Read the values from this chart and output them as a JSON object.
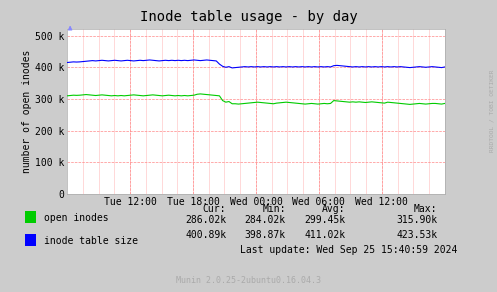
{
  "title": "Inode table usage - by day",
  "ylabel": "number of open inodes",
  "background_color": "#CCCCCC",
  "plot_bg_color": "#FFFFFF",
  "grid_color_minor": "#FFAAAA",
  "grid_color_major": "#FF9999",
  "x_ticks": [
    "Tue 12:00",
    "Tue 18:00",
    "Wed 00:00",
    "Wed 06:00",
    "Wed 12:00"
  ],
  "y_ticks": [
    "0",
    "100 k",
    "200 k",
    "300 k",
    "400 k",
    "500 k"
  ],
  "y_values": [
    0,
    100000,
    200000,
    300000,
    400000,
    500000
  ],
  "ylim": [
    0,
    520000
  ],
  "open_inodes_color": "#00CC00",
  "inode_table_color": "#0000FF",
  "legend": [
    {
      "label": "open inodes",
      "color": "#00CC00"
    },
    {
      "label": "inode table size",
      "color": "#0000FF"
    }
  ],
  "stats": {
    "cur_label": "Cur:",
    "min_label": "Min:",
    "avg_label": "Avg:",
    "max_label": "Max:",
    "open_inodes": {
      "cur": "286.02k",
      "min": "284.02k",
      "avg": "299.45k",
      "max": "315.90k"
    },
    "inode_table": {
      "cur": "400.89k",
      "min": "398.87k",
      "avg": "411.02k",
      "max": "423.53k"
    },
    "last_update": "Last update: Wed Sep 25 15:40:59 2024"
  },
  "watermark": "RRDTOOL / TOBI OETIKER",
  "munin_version": "Munin 2.0.25-2ubuntu0.16.04.3",
  "open_inodes_data": [
    310000,
    311000,
    312000,
    311500,
    312000,
    313000,
    314000,
    313000,
    312000,
    311000,
    312000,
    313000,
    312000,
    311000,
    310000,
    311000,
    310000,
    311000,
    310000,
    311000,
    312000,
    313000,
    312000,
    311000,
    310000,
    311000,
    312000,
    313000,
    312000,
    311000,
    310000,
    311000,
    312000,
    311000,
    310000,
    311000,
    310000,
    311000,
    310000,
    311000,
    312000,
    315000,
    316000,
    315000,
    314000,
    313000,
    312000,
    311000,
    310000,
    295000,
    290000,
    292000,
    285000,
    285000,
    284000,
    285000,
    286000,
    287000,
    288000,
    289000,
    290000,
    289000,
    288000,
    287000,
    286000,
    285000,
    287000,
    288000,
    289000,
    290000,
    289000,
    288000,
    287000,
    286000,
    285000,
    284000,
    285000,
    286000,
    285000,
    284000,
    285000,
    286000,
    285000,
    286000,
    295000,
    294000,
    293000,
    292000,
    291000,
    290000,
    291000,
    290000,
    291000,
    290000,
    289000,
    290000,
    291000,
    290000,
    289000,
    288000,
    287000,
    290000,
    289000,
    288000,
    287000,
    286000,
    285000,
    284000,
    283000,
    284000,
    285000,
    286000,
    285000,
    284000,
    285000,
    286000,
    286000,
    285000,
    284000,
    286000
  ],
  "inode_table_data": [
    415000,
    416000,
    417000,
    416500,
    417000,
    418000,
    419000,
    420000,
    421000,
    420000,
    421000,
    422000,
    421000,
    420000,
    421000,
    422000,
    421000,
    420000,
    421000,
    422000,
    421000,
    420000,
    421000,
    422000,
    421000,
    422000,
    423000,
    422000,
    421000,
    420000,
    421000,
    422000,
    421000,
    422000,
    421000,
    422000,
    421000,
    422000,
    421000,
    422000,
    423000,
    422000,
    421000,
    422000,
    423000,
    422000,
    421000,
    420000,
    410000,
    403000,
    400000,
    402000,
    398000,
    399000,
    400000,
    401000,
    402000,
    401000,
    402000,
    401000,
    402000,
    401000,
    402000,
    401000,
    402000,
    401000,
    402000,
    401000,
    402000,
    401000,
    402000,
    401000,
    402000,
    401000,
    402000,
    401000,
    402000,
    401000,
    402000,
    401000,
    402000,
    401000,
    402000,
    401000,
    405000,
    406000,
    405000,
    404000,
    403000,
    402000,
    401000,
    402000,
    401000,
    402000,
    401000,
    402000,
    401000,
    402000,
    401000,
    402000,
    401000,
    402000,
    401000,
    402000,
    401000,
    402000,
    401000,
    400000,
    399000,
    400000,
    401000,
    402000,
    401000,
    400000,
    401000,
    402000,
    401000,
    400000,
    399000,
    401000
  ]
}
